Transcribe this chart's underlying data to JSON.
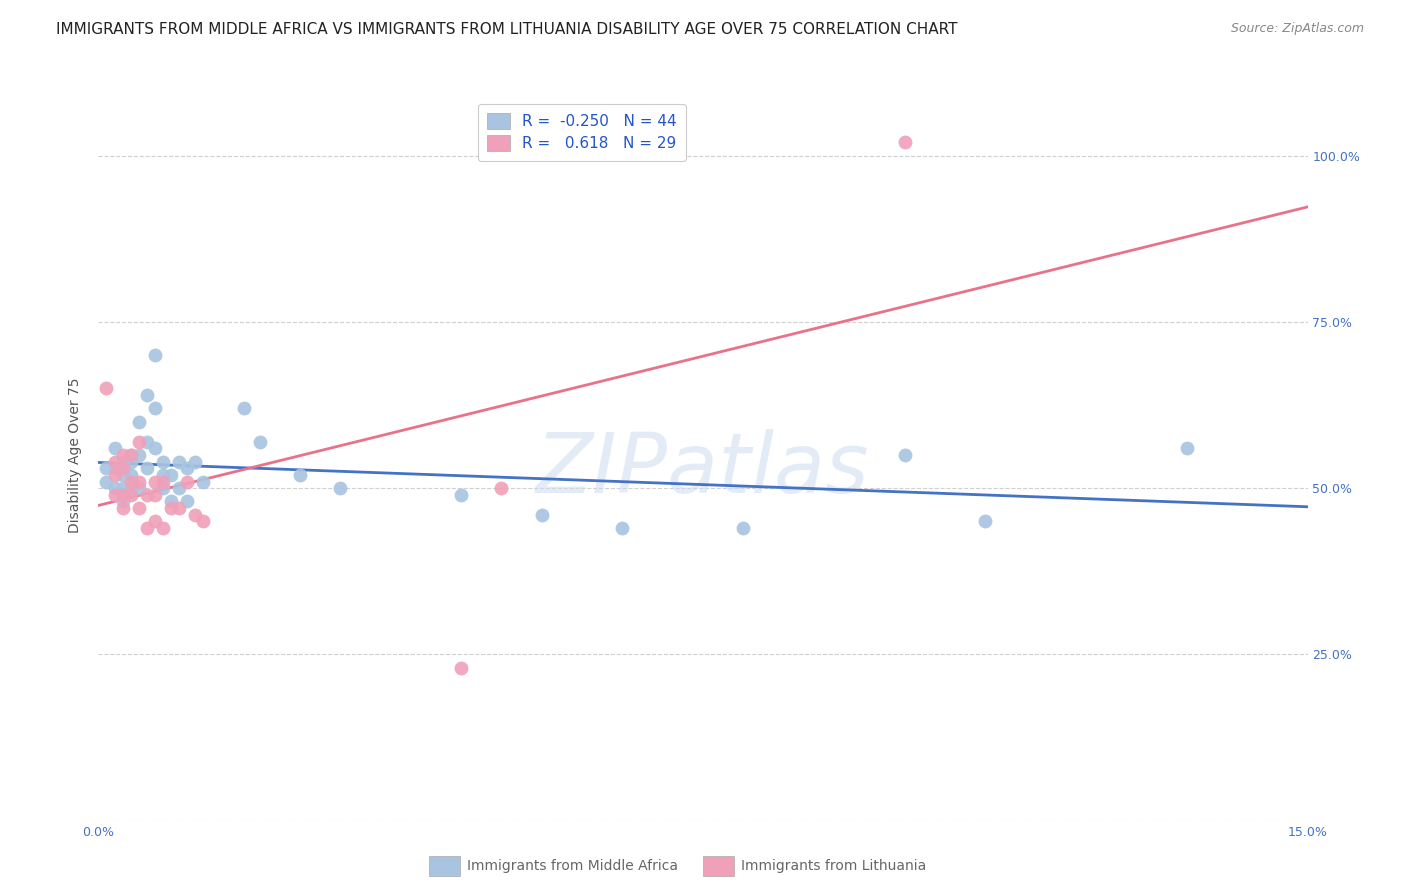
{
  "title": "IMMIGRANTS FROM MIDDLE AFRICA VS IMMIGRANTS FROM LITHUANIA DISABILITY AGE OVER 75 CORRELATION CHART",
  "source": "Source: ZipAtlas.com",
  "ylabel": "Disability Age Over 75",
  "x_label_1": "Immigrants from Middle Africa",
  "x_label_2": "Immigrants from Lithuania",
  "xlim": [
    0.0,
    0.15
  ],
  "ylim": [
    0.0,
    1.1
  ],
  "xtick_pos": [
    0.0,
    0.03,
    0.06,
    0.09,
    0.12,
    0.15
  ],
  "xtick_labels": [
    "0.0%",
    "",
    "",
    "",
    "",
    "15.0%"
  ],
  "ytick_positions": [
    0.0,
    0.25,
    0.5,
    0.75,
    1.0
  ],
  "ytick_labels": [
    "",
    "25.0%",
    "50.0%",
    "75.0%",
    "100.0%"
  ],
  "blue_R": -0.25,
  "blue_N": 44,
  "pink_R": 0.618,
  "pink_N": 29,
  "blue_color": "#a8c4e0",
  "pink_color": "#f0a0b8",
  "blue_line_color": "#4472c4",
  "pink_line_color": "#e8728a",
  "legend_color": "#2255cc",
  "watermark": "ZIPatlas",
  "blue_x": [
    0.001,
    0.001,
    0.002,
    0.002,
    0.002,
    0.003,
    0.003,
    0.003,
    0.003,
    0.004,
    0.004,
    0.004,
    0.004,
    0.005,
    0.005,
    0.005,
    0.006,
    0.006,
    0.006,
    0.007,
    0.007,
    0.007,
    0.008,
    0.008,
    0.008,
    0.009,
    0.009,
    0.01,
    0.01,
    0.011,
    0.011,
    0.012,
    0.013,
    0.018,
    0.02,
    0.025,
    0.03,
    0.045,
    0.055,
    0.065,
    0.08,
    0.1,
    0.11,
    0.135
  ],
  "blue_y": [
    0.53,
    0.51,
    0.53,
    0.5,
    0.56,
    0.52,
    0.54,
    0.5,
    0.48,
    0.55,
    0.52,
    0.54,
    0.5,
    0.6,
    0.55,
    0.5,
    0.64,
    0.57,
    0.53,
    0.7,
    0.62,
    0.56,
    0.54,
    0.52,
    0.5,
    0.52,
    0.48,
    0.54,
    0.5,
    0.53,
    0.48,
    0.54,
    0.51,
    0.62,
    0.57,
    0.52,
    0.5,
    0.49,
    0.46,
    0.44,
    0.44,
    0.55,
    0.45,
    0.56
  ],
  "pink_x": [
    0.001,
    0.002,
    0.002,
    0.002,
    0.003,
    0.003,
    0.003,
    0.003,
    0.004,
    0.004,
    0.004,
    0.005,
    0.005,
    0.005,
    0.006,
    0.006,
    0.007,
    0.007,
    0.007,
    0.008,
    0.008,
    0.009,
    0.01,
    0.011,
    0.012,
    0.013,
    0.045,
    0.05,
    0.1
  ],
  "pink_y": [
    0.65,
    0.54,
    0.52,
    0.49,
    0.55,
    0.53,
    0.49,
    0.47,
    0.55,
    0.51,
    0.49,
    0.57,
    0.51,
    0.47,
    0.49,
    0.44,
    0.51,
    0.49,
    0.45,
    0.51,
    0.44,
    0.47,
    0.47,
    0.51,
    0.46,
    0.45,
    0.23,
    0.5,
    1.02
  ],
  "title_fontsize": 11,
  "ylabel_fontsize": 10,
  "tick_fontsize": 9,
  "legend_fontsize": 11,
  "source_fontsize": 9
}
